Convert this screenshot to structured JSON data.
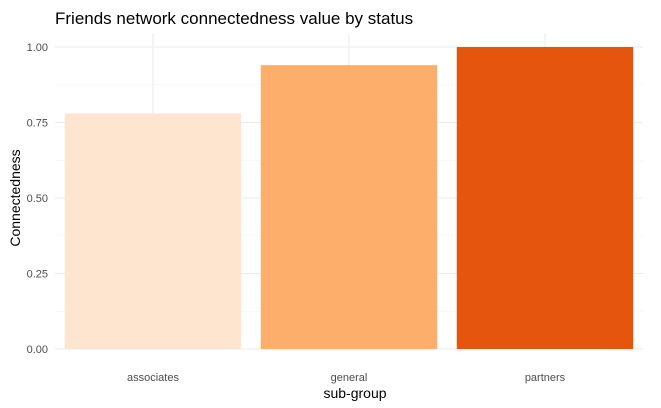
{
  "chart_data": {
    "type": "bar",
    "title": "Friends network connectedness value by status",
    "xlabel": "sub-group",
    "ylabel": "Connectedness",
    "categories": [
      "associates",
      "general",
      "partners"
    ],
    "values": [
      0.78,
      0.94,
      1.0
    ],
    "colors": [
      "#fde5cf",
      "#fdae6b",
      "#e6550d"
    ],
    "ylim": [
      0,
      1.0
    ],
    "yticks": [
      0.0,
      0.25,
      0.5,
      0.75,
      1.0
    ],
    "ytick_labels": [
      "0.00",
      "0.25",
      "0.50",
      "0.75",
      "1.00"
    ],
    "grid": true,
    "legend": "none"
  }
}
